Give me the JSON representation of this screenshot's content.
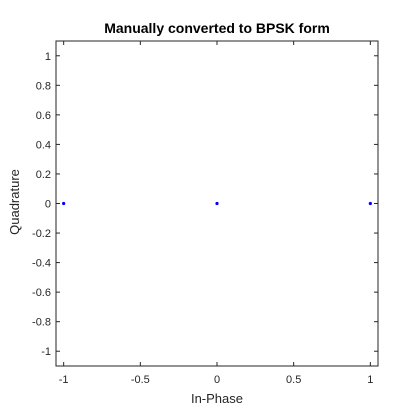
{
  "chart_data": {
    "type": "scatter",
    "title": "Manually converted to BPSK form",
    "xlabel": "In-Phase",
    "ylabel": "Quadrature",
    "xlim": [
      -1.05,
      1.05
    ],
    "ylim": [
      -1.1,
      1.1
    ],
    "xticks": [
      -1,
      -0.5,
      0,
      0.5,
      1
    ],
    "xtick_labels": [
      "-1",
      "-0.5",
      "0",
      "0.5",
      "1"
    ],
    "yticks": [
      1,
      0.8,
      0.6,
      0.4,
      0.2,
      0,
      -0.2,
      -0.4,
      -0.6,
      -0.8,
      -1
    ],
    "ytick_labels": [
      "1",
      "0.8",
      "0.6",
      "0.4",
      "0.2",
      "0",
      "-0.2",
      "-0.4",
      "-0.6",
      "-0.8",
      "-1"
    ],
    "grid": false,
    "box": true,
    "marker_color": "#0000ff",
    "points": [
      {
        "x": -1,
        "y": 0
      },
      {
        "x": 0,
        "y": 0
      },
      {
        "x": 1,
        "y": 0
      }
    ]
  }
}
